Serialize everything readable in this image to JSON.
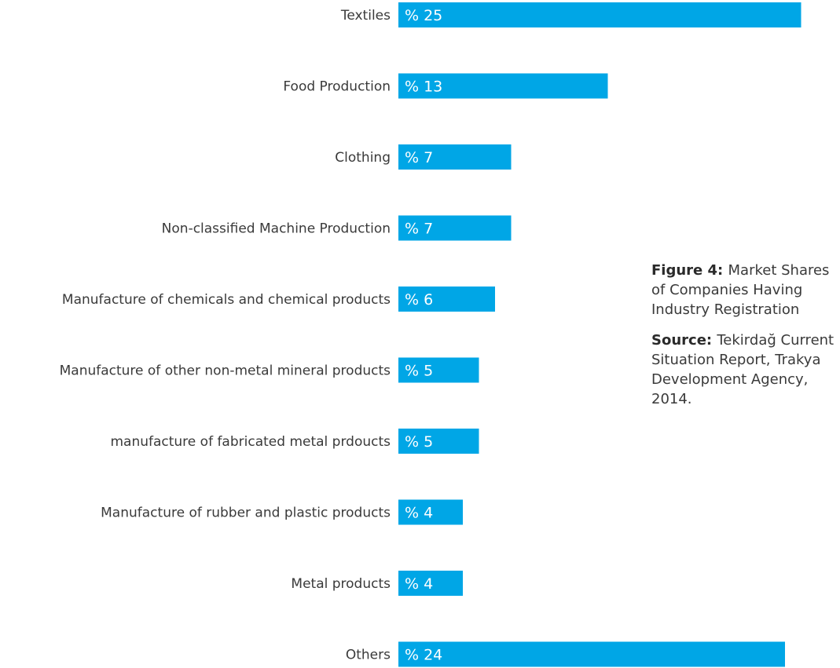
{
  "chart_data": {
    "type": "bar",
    "orientation": "horizontal",
    "value_prefix": "% ",
    "categories": [
      "Textiles",
      "Food Production",
      "Clothing",
      "Non-classified Machine Production",
      "Manufacture of chemicals and chemical products",
      "Manufacture of other non-metal mineral products",
      "manufacture of fabricated metal prdoucts",
      "Manufacture of rubber and plastic products",
      "Metal products",
      "Others"
    ],
    "values": [
      25,
      13,
      7,
      7,
      6,
      5,
      5,
      4,
      4,
      24
    ],
    "bar_color": "#00a6e6",
    "grid": false
  },
  "caption": {
    "figure_label": "Figure 4:",
    "figure_text": "Market Shares of Companies Having Industry Registration",
    "source_label": "Source:",
    "source_text": "Tekirdağ Current Situation Report, Trakya Development Agency, 2014."
  }
}
